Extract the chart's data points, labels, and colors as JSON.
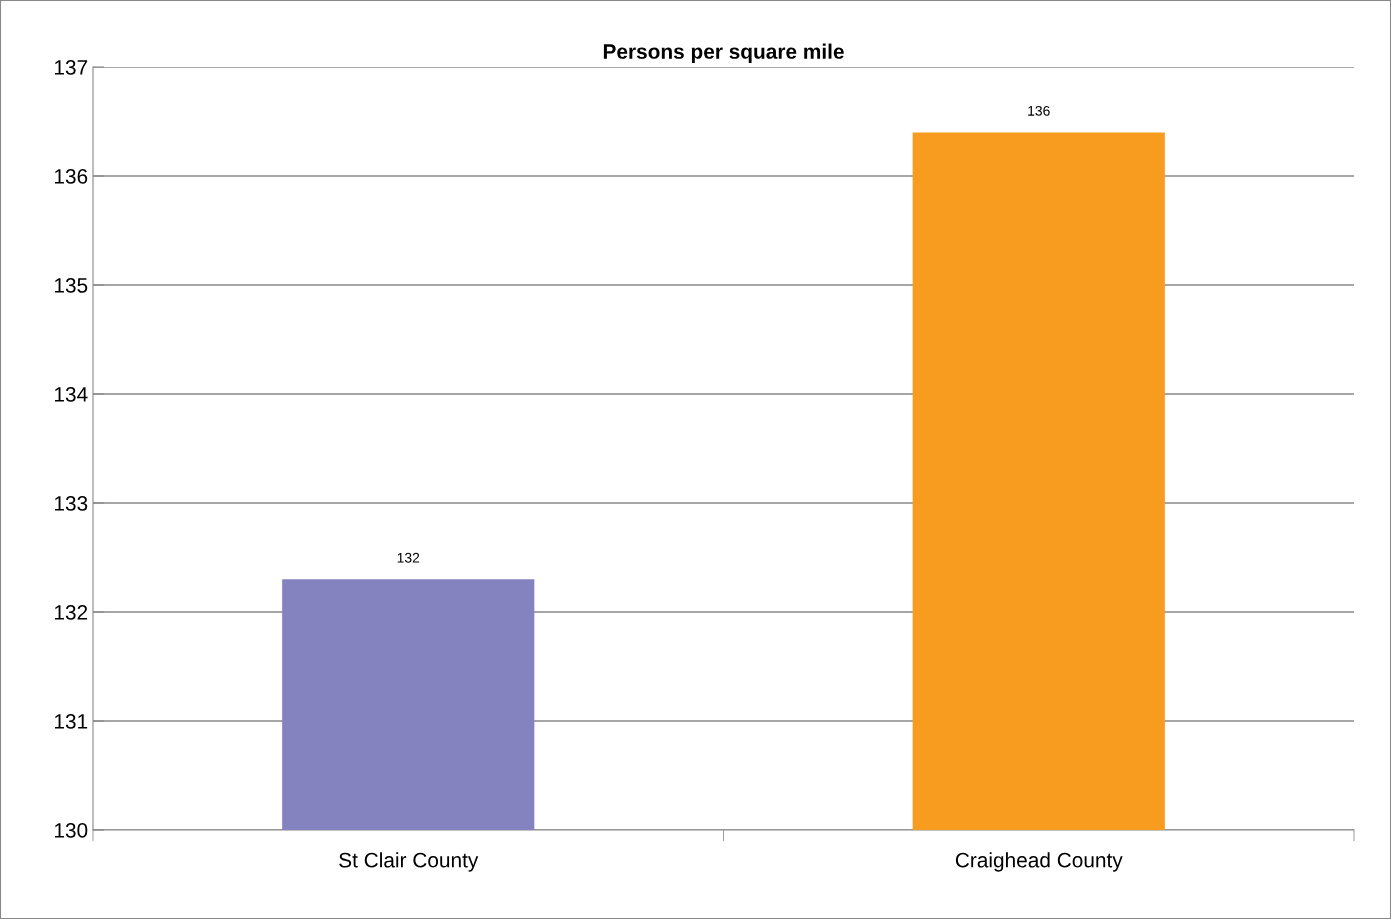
{
  "chart_data": {
    "type": "bar",
    "title": "Persons per square mile",
    "categories": [
      "St Clair County",
      "Craighead County"
    ],
    "values": [
      132.3,
      136.4
    ],
    "colors": [
      "#8583bf",
      "#f79c1f"
    ],
    "value_labels": [
      "132",
      "136"
    ],
    "ylim": [
      130,
      137
    ],
    "yticks": [
      130,
      131,
      132,
      133,
      134,
      135,
      136,
      137
    ],
    "grid": "y",
    "legend": false
  }
}
